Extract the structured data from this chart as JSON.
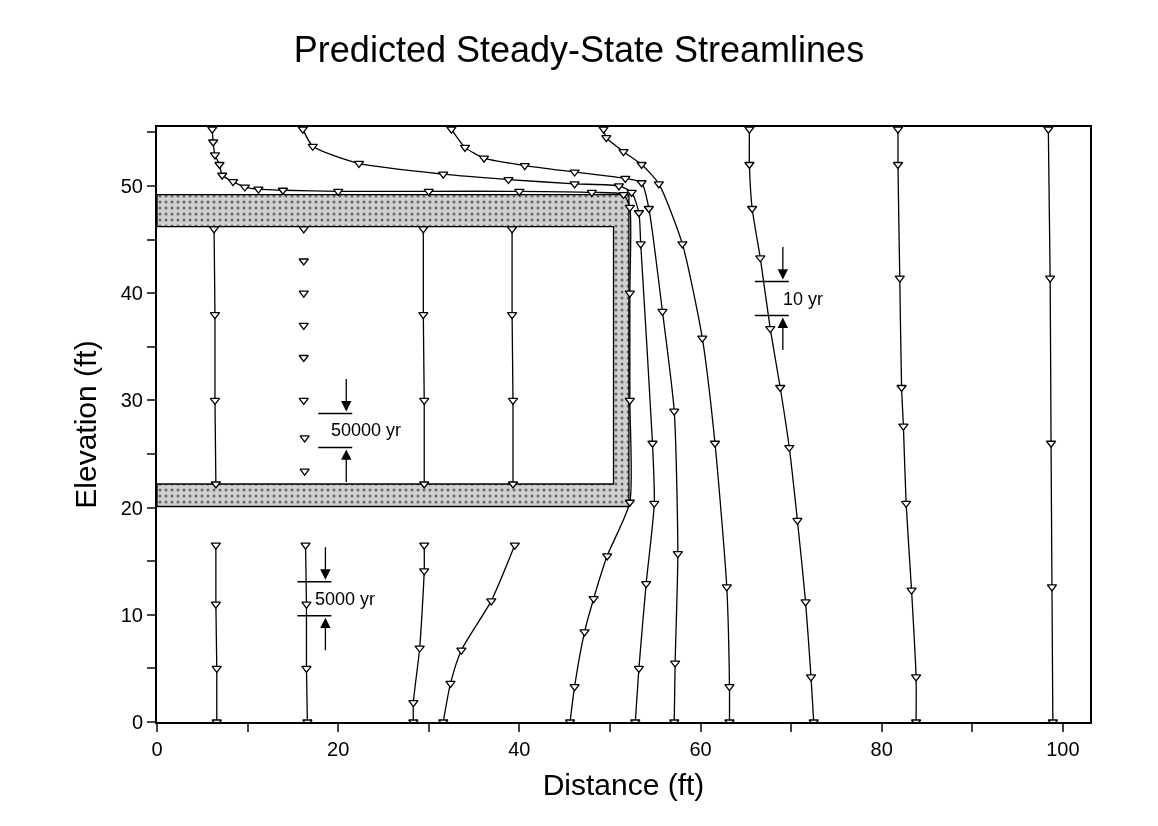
{
  "chart_data": {
    "type": "line",
    "title": "Predicted Steady-State Streamlines",
    "xlabel": "Distance (ft)",
    "ylabel": "Elevation (ft)",
    "xlim": [
      0,
      103
    ],
    "ylim": [
      0,
      55.5
    ],
    "xticks": [
      0,
      {
        "value": 10,
        "label": null
      },
      20,
      {
        "value": 30,
        "label": null
      },
      40,
      {
        "value": 50,
        "label": null
      },
      60,
      {
        "value": 70,
        "label": null
      },
      80,
      {
        "value": 90,
        "label": null
      },
      100
    ],
    "yticks": [
      0,
      {
        "value": 5,
        "label": null
      },
      10,
      {
        "value": 15,
        "label": null
      },
      20,
      {
        "value": 25,
        "label": null
      },
      30,
      {
        "value": 35,
        "label": null
      },
      40,
      {
        "value": 45,
        "label": null
      },
      50,
      {
        "value": 55,
        "label": null
      }
    ],
    "marker": "triangle",
    "line_style": "solid",
    "series": [
      {
        "type": "area",
        "marker": "none",
        "color": "#d0d0d0",
        "x": [
          0,
          52.1,
          52.1,
          0,
          0,
          50.4,
          50.4,
          0,
          0
        ],
        "values": [
          49.2,
          49.2,
          20.1,
          20.1,
          22.2,
          22.2,
          46.2,
          46.2,
          49.2
        ]
      },
      {
        "color": "#000000",
        "x": [
          6.1,
          6.2,
          6.4,
          6.9,
          7.2,
          8.4,
          9.7,
          11.2,
          13.9,
          20,
          30,
          40,
          48,
          51.5,
          52.2,
          52.2,
          52.2,
          52.2,
          49.7,
          48.2,
          47.2,
          46.1,
          45.6
        ],
        "values": [
          55.3,
          54.1,
          52.9,
          52.0,
          51.0,
          50.4,
          49.9,
          49.7,
          49.6,
          49.5,
          49.5,
          49.5,
          49.4,
          49.2,
          48,
          40,
          30,
          20.5,
          15.5,
          11.5,
          8.4,
          3.3,
          0
        ]
      },
      {
        "color": "#000000",
        "x": [
          16.1,
          17.2,
          22.3,
          31.6,
          38.8,
          46.1,
          51.0,
          52.4,
          53.2,
          53.4,
          54.7,
          54.9,
          54.0,
          53.2,
          52.8
        ],
        "values": [
          55.3,
          53.7,
          52.1,
          51.1,
          50.6,
          50.2,
          50.0,
          49.4,
          47.5,
          44.6,
          26.0,
          20.4,
          12.9,
          5.0,
          0
        ]
      },
      {
        "color": "#000000",
        "x": [
          32.5,
          34.0,
          36.1,
          40.6,
          46.1,
          51.7,
          53.5,
          54.3,
          55.8,
          57.1,
          57.5,
          57.2,
          57.1
        ],
        "values": [
          55.3,
          53.6,
          52.6,
          51.9,
          51.3,
          50.7,
          50.3,
          47.9,
          38.3,
          29.0,
          15.7,
          5.5,
          0
        ]
      },
      {
        "color": "#000000",
        "x": [
          49.3,
          49.6,
          51.5,
          53.5,
          55.4,
          58.0,
          60.2,
          61.6,
          62.9,
          63.2,
          63.2
        ],
        "values": [
          55.3,
          54.5,
          53.2,
          52.0,
          50.2,
          44.6,
          35.8,
          26.0,
          12.6,
          3.3,
          0
        ]
      },
      {
        "color": "#000000",
        "x": [
          65.4,
          65.4,
          65.7,
          66.6,
          67.7,
          68.8,
          69.8,
          70.7,
          71.6,
          72.2,
          72.5
        ],
        "values": [
          55.3,
          52.0,
          47.9,
          43.3,
          36.7,
          31.2,
          25.6,
          18.8,
          11.2,
          4.2,
          0
        ]
      },
      {
        "color": "#000000",
        "x": [
          81.8,
          81.8,
          82.0,
          82.2,
          82.4,
          82.7,
          83.3,
          83.8,
          83.8
        ],
        "values": [
          55.3,
          52.0,
          41.4,
          31.2,
          27.6,
          20.4,
          12.3,
          4.2,
          0
        ]
      },
      {
        "color": "#000000",
        "x": [
          98.4,
          98.6,
          98.7,
          98.8,
          98.9
        ],
        "values": [
          55.3,
          41.4,
          26.0,
          12.6,
          0
        ]
      },
      {
        "color": "#000000",
        "x": [
          6.3,
          6.4,
          6.4,
          6.5
        ],
        "values": [
          46.0,
          38,
          30,
          22.2
        ]
      },
      {
        "type": "scatter",
        "color": "#000000",
        "x": [
          16.2,
          16.2,
          16.2,
          16.2,
          16.2,
          16.2,
          16.3,
          16.3
        ],
        "values": [
          46.0,
          43,
          40,
          37,
          34,
          30,
          26.5,
          23.4
        ]
      },
      {
        "color": "#000000",
        "x": [
          29.4,
          29.4,
          29.5,
          29.5
        ],
        "values": [
          46.0,
          38,
          30,
          22.2
        ]
      },
      {
        "color": "#000000",
        "x": [
          39.2,
          39.2,
          39.3,
          39.3
        ],
        "values": [
          46.0,
          38,
          30,
          22.2
        ]
      },
      {
        "color": "#000000",
        "x": [
          6.5,
          6.5,
          6.6,
          6.6
        ],
        "values": [
          16.5,
          11,
          5,
          0
        ]
      },
      {
        "color": "#000000",
        "x": [
          16.4,
          16.5,
          16.5,
          16.6
        ],
        "values": [
          16.5,
          11,
          5,
          0
        ]
      },
      {
        "color": "#000000",
        "x": [
          29.5,
          29.5,
          29.0,
          28.3,
          28.3
        ],
        "values": [
          16.5,
          14.1,
          6.9,
          1.8,
          0
        ]
      },
      {
        "color": "#000000",
        "x": [
          39.5,
          36.9,
          33.6,
          32.4,
          31.6
        ],
        "values": [
          16.5,
          11.3,
          6.7,
          3.6,
          0
        ]
      }
    ],
    "annotations": [
      "10 yr",
      "50000 yr",
      "5000 yr"
    ]
  }
}
